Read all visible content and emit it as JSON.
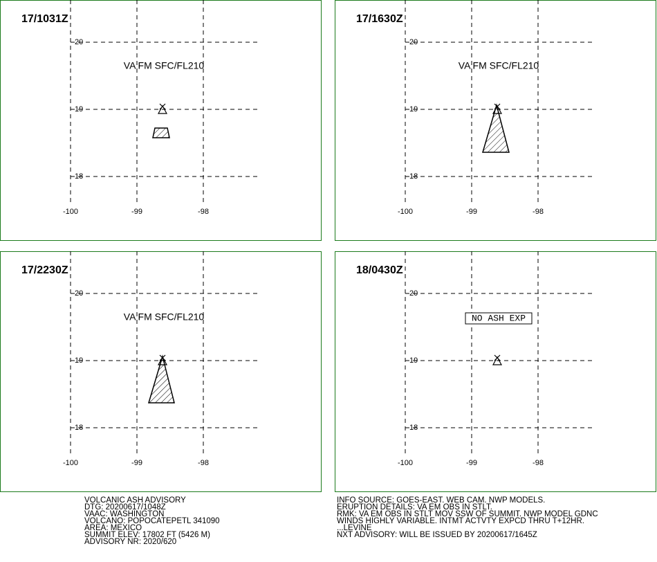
{
  "panels": [
    {
      "time": "17/1031Z",
      "label": "VA FM SFC/FL210"
    },
    {
      "time": "17/1630Z",
      "label": "VA FM SFC/FL210"
    },
    {
      "time": "17/2230Z",
      "label": "VA FM SFC/FL210"
    },
    {
      "time": "18/0430Z",
      "label": "NO ASH EXP"
    }
  ],
  "map": {
    "lat_ticks": [
      20,
      19,
      18
    ],
    "lon_ticks": [
      -100,
      -99,
      -98
    ]
  },
  "footer": {
    "left": [
      "VOLCANIC ASH ADVISORY",
      "DTG: 20200617/1048Z",
      "VAAC: WASHINGTON",
      "VOLCANO: POPOCATEPETL 341090",
      "AREA: MEXICO",
      "SUMMIT ELEV: 17802 FT (5426 M)",
      "ADVISORY NR: 2020/620"
    ],
    "right": [
      "INFO SOURCE: GOES-EAST. WEB CAM. NWP MODELS.",
      "ERUPTION DETAILS: VA EM OBS IN STLT.",
      "RMK: VA EM OBS IN STLT MOV SSW OF SUMMIT. NWP MODEL GDNC",
      "WINDS HIGHLY VARIABLE. INTMT ACTVTY EXPCD THRU T+12HR.",
      "...LEVINE",
      "NXT ADVISORY: WILL BE ISSUED BY 20200617/1645Z"
    ]
  }
}
